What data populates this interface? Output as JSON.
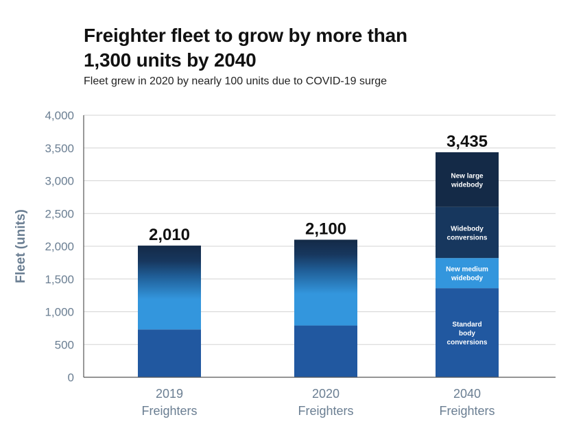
{
  "title": "Freighter fleet to grow by more than\n1,300 units by 2040",
  "subtitle": "Fleet grew in 2020 by nearly 100 units due to COVID-19 surge",
  "colors": {
    "standard_body_conversions": "#2158a0",
    "new_medium_widebody": "#3396dd",
    "widebody_conversions": "#17375e",
    "new_large_widebody": "#142a47",
    "axis_text": "#6a7e92",
    "grid": "#d3d3d3"
  },
  "chart_data": {
    "type": "bar",
    "stacked": true,
    "title": "Freighter fleet to grow by more than 1,300 units by 2040",
    "ylabel": "Fleet (units)",
    "xlabel": "",
    "ylim": [
      0,
      4000
    ],
    "yticks": [
      0,
      500,
      1000,
      1500,
      2000,
      2500,
      3000,
      3500,
      4000
    ],
    "ytick_labels": [
      "0",
      "500",
      "1,000",
      "1,500",
      "2,000",
      "2,500",
      "3,000",
      "3,500",
      "4,000"
    ],
    "grid": true,
    "categories": [
      {
        "line1": "2019",
        "line2": "Freighters"
      },
      {
        "line1": "2020",
        "line2": "Freighters"
      },
      {
        "line1": "2040",
        "line2": "Freighters"
      }
    ],
    "series": [
      {
        "name": "Standard body conversions",
        "lines": [
          "Standard",
          "body",
          "conversions"
        ],
        "values": [
          730,
          790,
          1360
        ]
      },
      {
        "name": "New medium widebody",
        "lines": [
          "New medium",
          "widebody"
        ],
        "values": [
          660,
          690,
          460
        ]
      },
      {
        "name": "Widebody conversions",
        "lines": [
          "Widebody",
          "conversions"
        ],
        "values": [
          620,
          620,
          780
        ]
      },
      {
        "name": "New large widebody",
        "lines": [
          "New large",
          "widebody"
        ],
        "values": [
          0,
          0,
          835
        ]
      }
    ],
    "totals": [
      2010,
      2100,
      3435
    ],
    "total_labels": [
      "2,010",
      "2,100",
      "3,435"
    ]
  }
}
